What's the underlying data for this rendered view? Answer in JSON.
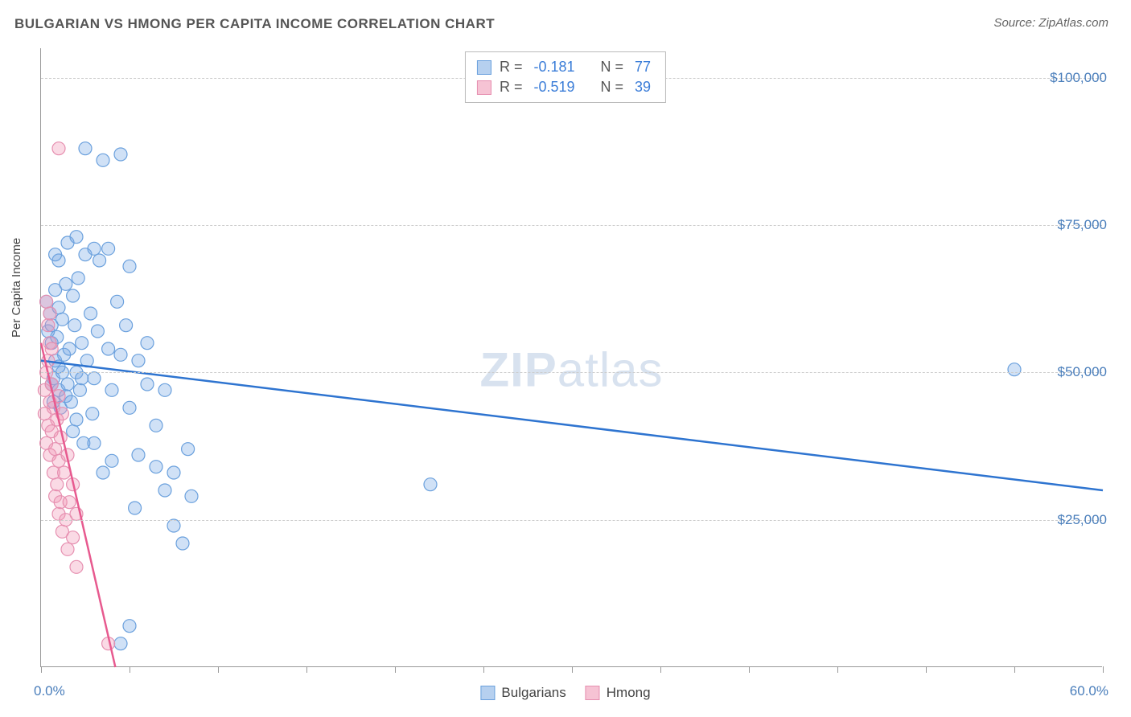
{
  "title": "BULGARIAN VS HMONG PER CAPITA INCOME CORRELATION CHART",
  "source_label": "Source: ZipAtlas.com",
  "watermark": {
    "bold": "ZIP",
    "rest": "atlas"
  },
  "y_axis_label": "Per Capita Income",
  "chart": {
    "type": "scatter",
    "xlim": [
      0,
      60
    ],
    "ylim": [
      0,
      105000
    ],
    "x_unit": "%",
    "y_unit": "$",
    "x_tick_step": 5,
    "y_ticks": [
      25000,
      50000,
      75000,
      100000
    ],
    "y_tick_labels": [
      "$25,000",
      "$50,000",
      "$75,000",
      "$100,000"
    ],
    "x_min_label": "0.0%",
    "x_max_label": "60.0%",
    "background_color": "#ffffff",
    "grid_color": "#cccccc",
    "axis_color": "#999999",
    "label_color": "#4a7ebb",
    "watermark_color": "rgba(100,140,190,0.25)",
    "marker_radius": 8,
    "marker_stroke_width": 1.2,
    "line_width": 2.5,
    "series": [
      {
        "name": "Bulgarians",
        "color_fill": "rgba(120,170,230,0.35)",
        "color_stroke": "#6aa0dd",
        "line_color": "#2e74d0",
        "swatch_fill": "#b6d0ef",
        "swatch_border": "#6aa0dd",
        "r_value": "-0.181",
        "n_value": "77",
        "regression": {
          "x1": 0,
          "y1": 52000,
          "x2": 60,
          "y2": 30000
        },
        "points": [
          [
            0.3,
            62000
          ],
          [
            0.4,
            57000
          ],
          [
            0.5,
            60000
          ],
          [
            0.6,
            55000
          ],
          [
            0.6,
            58000
          ],
          [
            0.7,
            49000
          ],
          [
            0.8,
            64000
          ],
          [
            0.8,
            52000
          ],
          [
            0.9,
            56000
          ],
          [
            1.0,
            47000
          ],
          [
            1.0,
            61000
          ],
          [
            1.1,
            44000
          ],
          [
            1.2,
            59000
          ],
          [
            1.2,
            50000
          ],
          [
            1.3,
            53000
          ],
          [
            1.4,
            46000
          ],
          [
            1.5,
            72000
          ],
          [
            1.5,
            48000
          ],
          [
            1.6,
            54000
          ],
          [
            1.7,
            45000
          ],
          [
            1.8,
            63000
          ],
          [
            1.8,
            40000
          ],
          [
            1.9,
            58000
          ],
          [
            2.0,
            50000
          ],
          [
            2.0,
            42000
          ],
          [
            2.1,
            66000
          ],
          [
            2.2,
            47000
          ],
          [
            2.3,
            55000
          ],
          [
            2.4,
            38000
          ],
          [
            2.5,
            70000
          ],
          [
            2.5,
            88000
          ],
          [
            2.6,
            52000
          ],
          [
            2.8,
            60000
          ],
          [
            2.9,
            43000
          ],
          [
            3.0,
            71000
          ],
          [
            3.0,
            49000
          ],
          [
            3.2,
            57000
          ],
          [
            3.3,
            69000
          ],
          [
            3.5,
            86000
          ],
          [
            3.5,
            33000
          ],
          [
            3.8,
            54000
          ],
          [
            3.8,
            71000
          ],
          [
            4.0,
            47000
          ],
          [
            4.0,
            35000
          ],
          [
            4.3,
            62000
          ],
          [
            4.5,
            53000
          ],
          [
            4.5,
            87000
          ],
          [
            4.8,
            58000
          ],
          [
            5.0,
            44000
          ],
          [
            5.0,
            68000
          ],
          [
            5.3,
            27000
          ],
          [
            5.5,
            36000
          ],
          [
            5.5,
            52000
          ],
          [
            6.0,
            55000
          ],
          [
            6.0,
            48000
          ],
          [
            6.5,
            41000
          ],
          [
            6.5,
            34000
          ],
          [
            7.0,
            30000
          ],
          [
            7.0,
            47000
          ],
          [
            7.5,
            24000
          ],
          [
            7.5,
            33000
          ],
          [
            8.0,
            21000
          ],
          [
            8.3,
            37000
          ],
          [
            8.5,
            29000
          ],
          [
            2.0,
            73000
          ],
          [
            1.0,
            69000
          ],
          [
            0.8,
            70000
          ],
          [
            5.0,
            7000
          ],
          [
            4.5,
            4000
          ],
          [
            22.0,
            31000
          ],
          [
            55.0,
            50500
          ],
          [
            1.4,
            65000
          ],
          [
            2.3,
            49000
          ],
          [
            3.0,
            38000
          ],
          [
            1.0,
            51000
          ],
          [
            0.7,
            45000
          ],
          [
            0.6,
            48000
          ]
        ]
      },
      {
        "name": "Hmong",
        "color_fill": "rgba(240,150,180,0.35)",
        "color_stroke": "#e68fb0",
        "line_color": "#e75a8f",
        "swatch_fill": "#f6c3d4",
        "swatch_border": "#e68fb0",
        "r_value": "-0.519",
        "n_value": "39",
        "regression": {
          "x1": 0,
          "y1": 55000,
          "x2": 4.2,
          "y2": 0
        },
        "points": [
          [
            0.2,
            47000
          ],
          [
            0.2,
            43000
          ],
          [
            0.3,
            50000
          ],
          [
            0.3,
            38000
          ],
          [
            0.4,
            52000
          ],
          [
            0.4,
            41000
          ],
          [
            0.5,
            45000
          ],
          [
            0.5,
            36000
          ],
          [
            0.5,
            55000
          ],
          [
            0.6,
            40000
          ],
          [
            0.6,
            48000
          ],
          [
            0.7,
            33000
          ],
          [
            0.7,
            44000
          ],
          [
            0.8,
            37000
          ],
          [
            0.8,
            29000
          ],
          [
            0.9,
            42000
          ],
          [
            0.9,
            31000
          ],
          [
            1.0,
            35000
          ],
          [
            1.0,
            46000
          ],
          [
            1.0,
            26000
          ],
          [
            1.1,
            39000
          ],
          [
            1.1,
            28000
          ],
          [
            1.2,
            43000
          ],
          [
            1.2,
            23000
          ],
          [
            1.3,
            33000
          ],
          [
            1.4,
            25000
          ],
          [
            1.5,
            36000
          ],
          [
            1.5,
            20000
          ],
          [
            1.6,
            28000
          ],
          [
            1.8,
            31000
          ],
          [
            1.8,
            22000
          ],
          [
            2.0,
            26000
          ],
          [
            2.0,
            17000
          ],
          [
            0.4,
            58000
          ],
          [
            0.3,
            62000
          ],
          [
            1.0,
            88000
          ],
          [
            0.5,
            60000
          ],
          [
            3.8,
            4000
          ],
          [
            0.6,
            54000
          ]
        ]
      }
    ]
  },
  "stat_box": {
    "r_label": "R =",
    "n_label": "N ="
  },
  "bottom_legend": {
    "items": [
      "Bulgarians",
      "Hmong"
    ]
  }
}
